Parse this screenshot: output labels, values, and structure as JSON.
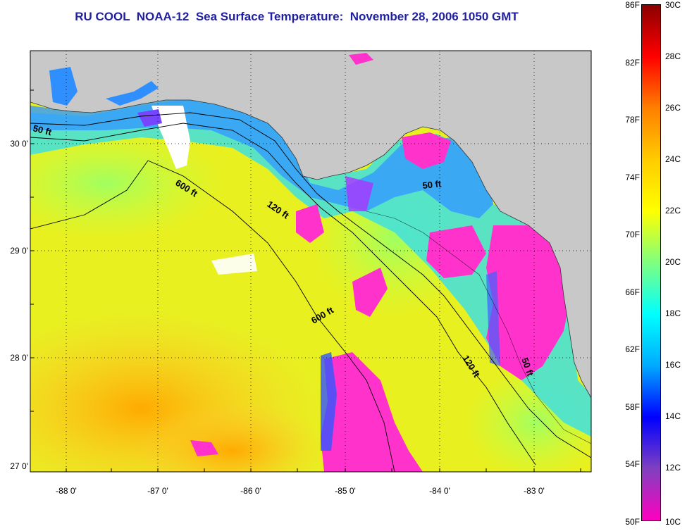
{
  "title": "RU COOL  NOAA-12  Sea Surface Temperature:  November 28, 2006 1050 GMT",
  "lat_labels": [
    "30 0'",
    "29 0'",
    "28 0'",
    "27 0'"
  ],
  "lon_labels": [
    "-88 0'",
    "-87 0'",
    "-86 0'",
    "-85 0'",
    "-84 0'",
    "-83 0'"
  ],
  "depth_labels": [
    "50 ft",
    "600 ft",
    "120 ft",
    "50 ft",
    "600 ft",
    "120 ft",
    "50 ft"
  ],
  "colorbar": {
    "fahrenheit": [
      "86F",
      "82F",
      "78F",
      "74F",
      "70F",
      "66F",
      "62F",
      "58F",
      "54F",
      "50F"
    ],
    "celsius": [
      "30C",
      "28C",
      "26C",
      "24C",
      "22C",
      "20C",
      "18C",
      "16C",
      "14C",
      "12C",
      "10C"
    ],
    "colors": [
      "#8b0000",
      "#ff0000",
      "#ff7f00",
      "#ffcc00",
      "#ffff00",
      "#7fff7f",
      "#00ffff",
      "#00aaff",
      "#0000ff",
      "#8040c0",
      "#ff00c0"
    ]
  },
  "colors": {
    "land": "#c8c8c8",
    "title": "#1f1fa0"
  }
}
